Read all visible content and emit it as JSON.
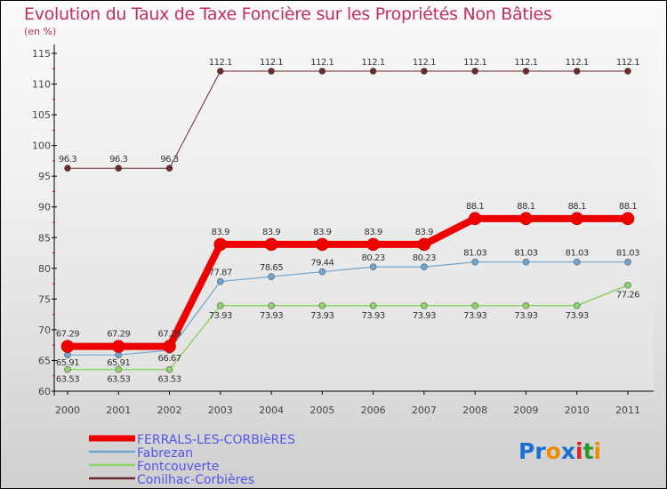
{
  "title": "Evolution du Taux de Taxe Foncière sur les Propriétés Non Bâties",
  "unit": "(en %)",
  "logo_text": "Proxiti",
  "chart_data": {
    "type": "line",
    "title": "Evolution du Taux de Taxe Foncière sur les Propriétés Non Bâties",
    "ylabel": "(en %)",
    "xlabel": "",
    "ylim": [
      60,
      115
    ],
    "yticks": [
      "60",
      "65",
      "70",
      "75",
      "80",
      "85",
      "90",
      "95",
      "100",
      "105",
      "110",
      "115"
    ],
    "categories": [
      "2000",
      "2001",
      "2002",
      "2003",
      "2004",
      "2005",
      "2006",
      "2007",
      "2008",
      "2009",
      "2010",
      "2011"
    ],
    "legend_position": "bottom-left",
    "series": [
      {
        "name": "Conilhac-Corbières",
        "color": "#6b2a2a",
        "width": 1,
        "values": [
          96.3,
          96.3,
          96.3,
          112.1,
          112.1,
          112.1,
          112.1,
          112.1,
          112.1,
          112.1,
          112.1,
          112.1
        ],
        "labels": [
          "96.3",
          "96.3",
          "96.3",
          "112.1",
          "112.1",
          "112.1",
          "112.1",
          "112.1",
          "112.1",
          "112.1",
          "112.1",
          "112.1"
        ]
      },
      {
        "name": "Fontcouverte",
        "color": "#8fd46a",
        "width": 1.5,
        "values": [
          63.53,
          63.53,
          63.53,
          73.93,
          73.93,
          73.93,
          73.93,
          73.93,
          73.93,
          73.93,
          73.93,
          77.26
        ],
        "labels": [
          "63.53",
          "63.53",
          "63.53",
          "73.93",
          "73.93",
          "73.93",
          "73.93",
          "73.93",
          "73.93",
          "73.93",
          "73.93",
          "77.26"
        ]
      },
      {
        "name": "Fabrezan",
        "color": "#6fa6d0",
        "width": 1.2,
        "values": [
          65.91,
          65.91,
          66.67,
          77.87,
          78.65,
          79.44,
          80.23,
          80.23,
          81.03,
          81.03,
          81.03,
          81.03
        ],
        "labels": [
          "65.91",
          "65.91",
          "66.67",
          "77.87",
          "78.65",
          "79.44",
          "80.23",
          "80.23",
          "81.03",
          "81.03",
          "81.03",
          "81.03"
        ]
      },
      {
        "name": "FERRALS-LES-CORBIèRES",
        "color": "#ee0000",
        "width": 8,
        "values": [
          67.29,
          67.29,
          67.29,
          83.9,
          83.9,
          83.9,
          83.9,
          83.9,
          88.1,
          88.1,
          88.1,
          88.1
        ],
        "labels": [
          "67.29",
          "67.29",
          "67.29",
          "83.9",
          "83.9",
          "83.9",
          "83.9",
          "83.9",
          "88.1",
          "88.1",
          "88.1",
          "88.1"
        ]
      }
    ]
  }
}
